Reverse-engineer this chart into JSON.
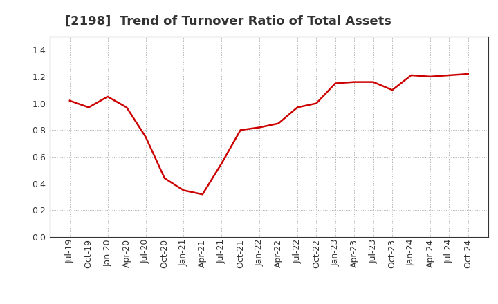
{
  "title": "[2198]  Trend of Turnover Ratio of Total Assets",
  "x_labels": [
    "Jul-19",
    "Oct-19",
    "Jan-20",
    "Apr-20",
    "Jul-20",
    "Oct-20",
    "Jan-21",
    "Apr-21",
    "Jul-21",
    "Oct-21",
    "Jan-22",
    "Apr-22",
    "Jul-22",
    "Oct-22",
    "Jan-23",
    "Apr-23",
    "Jul-23",
    "Oct-23",
    "Jan-24",
    "Apr-24",
    "Jul-24",
    "Oct-24"
  ],
  "values": [
    1.02,
    0.97,
    1.05,
    0.97,
    0.75,
    0.44,
    0.35,
    0.32,
    0.55,
    0.8,
    0.82,
    0.85,
    0.97,
    1.0,
    1.15,
    1.16,
    1.16,
    1.1,
    1.21,
    1.2,
    1.21,
    1.22
  ],
  "line_color": "#cc0000",
  "line_width": 1.8,
  "ylim": [
    0.0,
    1.5
  ],
  "yticks": [
    0.0,
    0.2,
    0.4,
    0.6,
    0.8,
    1.0,
    1.2,
    1.4
  ],
  "background_color": "#ffffff",
  "grid_color": "#999999",
  "title_fontsize": 13,
  "tick_fontsize": 9,
  "title_color": "#333333"
}
